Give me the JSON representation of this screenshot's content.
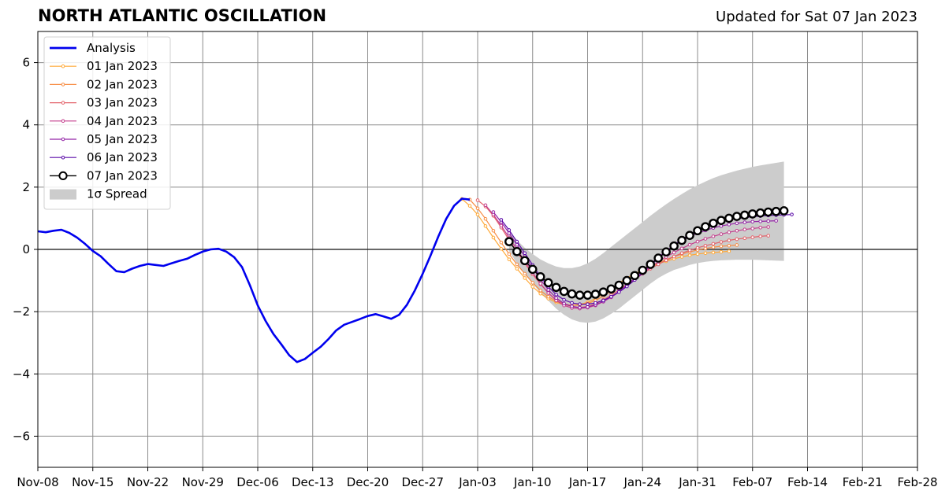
{
  "header": {
    "title": "NORTH ATLANTIC OSCILLATION",
    "updated": "Updated for Sat 07 Jan 2023"
  },
  "chart_data": {
    "type": "line",
    "title": "NORTH ATLANTIC OSCILLATION",
    "subtitle": "Updated for Sat 07 Jan 2023",
    "xlabel": "",
    "ylabel": "",
    "xlim": [
      "2022-11-08",
      "2023-02-28"
    ],
    "ylim": [
      -7,
      7
    ],
    "grid": true,
    "legend_position": "top-left",
    "x_ticks": [
      "2022-11-08",
      "2022-11-15",
      "2022-11-22",
      "2022-11-29",
      "2022-12-06",
      "2022-12-13",
      "2022-12-20",
      "2022-12-27",
      "2023-01-03",
      "2023-01-10",
      "2023-01-17",
      "2023-01-24",
      "2023-01-31",
      "2023-02-07",
      "2023-02-14",
      "2023-02-21",
      "2023-02-28"
    ],
    "x_tick_labels": [
      "Nov-08",
      "Nov-15",
      "Nov-22",
      "Nov-29",
      "Dec-06",
      "Dec-13",
      "Dec-20",
      "Dec-27",
      "Jan-03",
      "Jan-10",
      "Jan-17",
      "Jan-24",
      "Jan-31",
      "Feb-07",
      "Feb-14",
      "Feb-21",
      "Feb-28"
    ],
    "y_ticks": [
      -6,
      -4,
      -2,
      0,
      2,
      4,
      6
    ],
    "y_tick_labels": [
      "−6",
      "−4",
      "−2",
      "0",
      "2",
      "4",
      "6"
    ],
    "legend": [
      "Analysis",
      "01 Jan 2023",
      "02 Jan 2023",
      "03 Jan 2023",
      "04 Jan 2023",
      "05 Jan 2023",
      "06 Jan 2023",
      "07 Jan 2023",
      "1σ Spread"
    ],
    "analysis": {
      "name": "Analysis",
      "color": "#0000ee",
      "x": [
        "2022-11-08",
        "2022-11-09",
        "2022-11-10",
        "2022-11-11",
        "2022-11-12",
        "2022-11-13",
        "2022-11-14",
        "2022-11-15",
        "2022-11-16",
        "2022-11-17",
        "2022-11-18",
        "2022-11-19",
        "2022-11-20",
        "2022-11-21",
        "2022-11-22",
        "2022-11-23",
        "2022-11-24",
        "2022-11-25",
        "2022-11-26",
        "2022-11-27",
        "2022-11-28",
        "2022-11-29",
        "2022-11-30",
        "2022-12-01",
        "2022-12-02",
        "2022-12-03",
        "2022-12-04",
        "2022-12-05",
        "2022-12-06",
        "2022-12-07",
        "2022-12-08",
        "2022-12-09",
        "2022-12-10",
        "2022-12-11",
        "2022-12-12",
        "2022-12-13",
        "2022-12-14",
        "2022-12-15",
        "2022-12-16",
        "2022-12-17",
        "2022-12-18",
        "2022-12-19",
        "2022-12-20",
        "2022-12-21",
        "2022-12-22",
        "2022-12-23",
        "2022-12-24",
        "2022-12-25",
        "2022-12-26",
        "2022-12-27",
        "2022-12-28",
        "2022-12-29",
        "2022-12-30",
        "2022-12-31",
        "2023-01-01",
        "2023-01-02"
      ],
      "y": [
        0.58,
        0.55,
        0.6,
        0.63,
        0.53,
        0.38,
        0.18,
        -0.05,
        -0.22,
        -0.47,
        -0.7,
        -0.73,
        -0.62,
        -0.53,
        -0.47,
        -0.5,
        -0.53,
        -0.45,
        -0.37,
        -0.3,
        -0.18,
        -0.07,
        0.0,
        0.02,
        -0.07,
        -0.25,
        -0.57,
        -1.15,
        -1.8,
        -2.3,
        -2.72,
        -3.05,
        -3.4,
        -3.62,
        -3.52,
        -3.32,
        -3.13,
        -2.88,
        -2.6,
        -2.42,
        -2.33,
        -2.24,
        -2.14,
        -2.08,
        -2.15,
        -2.23,
        -2.1,
        -1.78,
        -1.32,
        -0.78,
        -0.2,
        0.42,
        0.98,
        1.4,
        1.63,
        1.6
      ]
    },
    "forecasts": [
      {
        "name": "01 Jan 2023",
        "color": "#ffa836",
        "start": "2023-01-01",
        "y": [
          1.62,
          1.4,
          1.12,
          0.75,
          0.38,
          0.02,
          -0.32,
          -0.62,
          -0.92,
          -1.2,
          -1.42,
          -1.58,
          -1.7,
          -1.78,
          -1.8,
          -1.77,
          -1.7,
          -1.58,
          -1.42,
          -1.25,
          -1.08,
          -0.92,
          -0.78,
          -0.66,
          -0.55,
          -0.46,
          -0.38,
          -0.3,
          -0.24,
          -0.19,
          -0.15,
          -0.12,
          -0.1,
          -0.08,
          -0.06
        ]
      },
      {
        "name": "02 Jan 2023",
        "color": "#f78c43",
        "start": "2023-01-02",
        "y": [
          1.6,
          1.32,
          0.98,
          0.6,
          0.22,
          -0.15,
          -0.48,
          -0.78,
          -1.07,
          -1.32,
          -1.52,
          -1.66,
          -1.75,
          -1.8,
          -1.79,
          -1.74,
          -1.64,
          -1.5,
          -1.34,
          -1.17,
          -1.0,
          -0.84,
          -0.7,
          -0.56,
          -0.44,
          -0.33,
          -0.23,
          -0.15,
          -0.08,
          -0.02,
          0.03,
          0.07,
          0.1,
          0.12,
          0.14
        ]
      },
      {
        "name": "03 Jan 2023",
        "color": "#e3626a",
        "start": "2023-01-03",
        "y": [
          1.58,
          1.38,
          1.08,
          0.7,
          0.3,
          -0.08,
          -0.45,
          -0.8,
          -1.12,
          -1.4,
          -1.62,
          -1.76,
          -1.84,
          -1.87,
          -1.83,
          -1.75,
          -1.62,
          -1.47,
          -1.3,
          -1.12,
          -0.95,
          -0.78,
          -0.62,
          -0.48,
          -0.35,
          -0.23,
          -0.12,
          -0.03,
          0.05,
          0.12,
          0.18,
          0.24,
          0.29,
          0.33,
          0.36,
          0.39,
          0.42,
          0.44
        ]
      },
      {
        "name": "04 Jan 2023",
        "color": "#c43f8e",
        "start": "2023-01-04",
        "y": [
          1.42,
          1.12,
          0.76,
          0.38,
          0.0,
          -0.38,
          -0.75,
          -1.1,
          -1.4,
          -1.64,
          -1.8,
          -1.88,
          -1.9,
          -1.87,
          -1.8,
          -1.68,
          -1.54,
          -1.37,
          -1.18,
          -0.98,
          -0.78,
          -0.58,
          -0.4,
          -0.24,
          -0.1,
          0.03,
          0.15,
          0.25,
          0.34,
          0.42,
          0.49,
          0.55,
          0.6,
          0.64,
          0.67,
          0.7,
          0.72
        ]
      },
      {
        "name": "05 Jan 2023",
        "color": "#9324a6",
        "start": "2023-01-05",
        "y": [
          1.2,
          0.88,
          0.52,
          0.15,
          -0.22,
          -0.6,
          -0.97,
          -1.3,
          -1.56,
          -1.74,
          -1.83,
          -1.87,
          -1.85,
          -1.78,
          -1.67,
          -1.52,
          -1.35,
          -1.15,
          -0.93,
          -0.7,
          -0.47,
          -0.25,
          -0.05,
          0.13,
          0.28,
          0.41,
          0.52,
          0.61,
          0.69,
          0.75,
          0.8,
          0.84,
          0.87,
          0.89,
          0.9,
          0.91,
          0.92
        ]
      },
      {
        "name": "06 Jan 2023",
        "color": "#5a0aa8",
        "start": "2023-01-06",
        "y": [
          0.95,
          0.62,
          0.25,
          -0.12,
          -0.5,
          -0.88,
          -1.2,
          -1.45,
          -1.62,
          -1.72,
          -1.76,
          -1.76,
          -1.72,
          -1.64,
          -1.52,
          -1.37,
          -1.19,
          -0.98,
          -0.75,
          -0.52,
          -0.29,
          -0.07,
          0.14,
          0.32,
          0.48,
          0.62,
          0.73,
          0.82,
          0.89,
          0.95,
          0.99,
          1.02,
          1.05,
          1.07,
          1.09,
          1.1,
          1.11,
          1.12
        ]
      },
      {
        "name": "07 Jan 2023",
        "color": "#000000",
        "start": "2023-01-07",
        "y": [
          0.25,
          -0.07,
          -0.36,
          -0.64,
          -0.88,
          -1.07,
          -1.22,
          -1.35,
          -1.43,
          -1.47,
          -1.47,
          -1.44,
          -1.37,
          -1.27,
          -1.15,
          -1.0,
          -0.84,
          -0.67,
          -0.48,
          -0.28,
          -0.08,
          0.11,
          0.29,
          0.45,
          0.6,
          0.73,
          0.84,
          0.93,
          1.0,
          1.06,
          1.1,
          1.14,
          1.17,
          1.2,
          1.22,
          1.24
        ]
      }
    ],
    "spread": {
      "name": "1σ Spread",
      "color": "#cccccc",
      "start": "2023-01-07",
      "upper": [
        0.55,
        0.3,
        0.05,
        -0.15,
        -0.32,
        -0.45,
        -0.55,
        -0.6,
        -0.6,
        -0.55,
        -0.45,
        -0.3,
        -0.12,
        0.08,
        0.28,
        0.48,
        0.68,
        0.88,
        1.08,
        1.27,
        1.45,
        1.62,
        1.78,
        1.93,
        2.06,
        2.18,
        2.29,
        2.38,
        2.46,
        2.53,
        2.59,
        2.65,
        2.7,
        2.74,
        2.78,
        2.82
      ],
      "lower": [
        -0.05,
        -0.45,
        -0.8,
        -1.1,
        -1.4,
        -1.65,
        -1.9,
        -2.1,
        -2.25,
        -2.33,
        -2.36,
        -2.32,
        -2.22,
        -2.07,
        -1.9,
        -1.7,
        -1.5,
        -1.3,
        -1.1,
        -0.92,
        -0.78,
        -0.66,
        -0.58,
        -0.5,
        -0.44,
        -0.4,
        -0.37,
        -0.35,
        -0.34,
        -0.33,
        -0.33,
        -0.33,
        -0.34,
        -0.35,
        -0.36,
        -0.37
      ]
    },
    "zero_line": 0
  }
}
